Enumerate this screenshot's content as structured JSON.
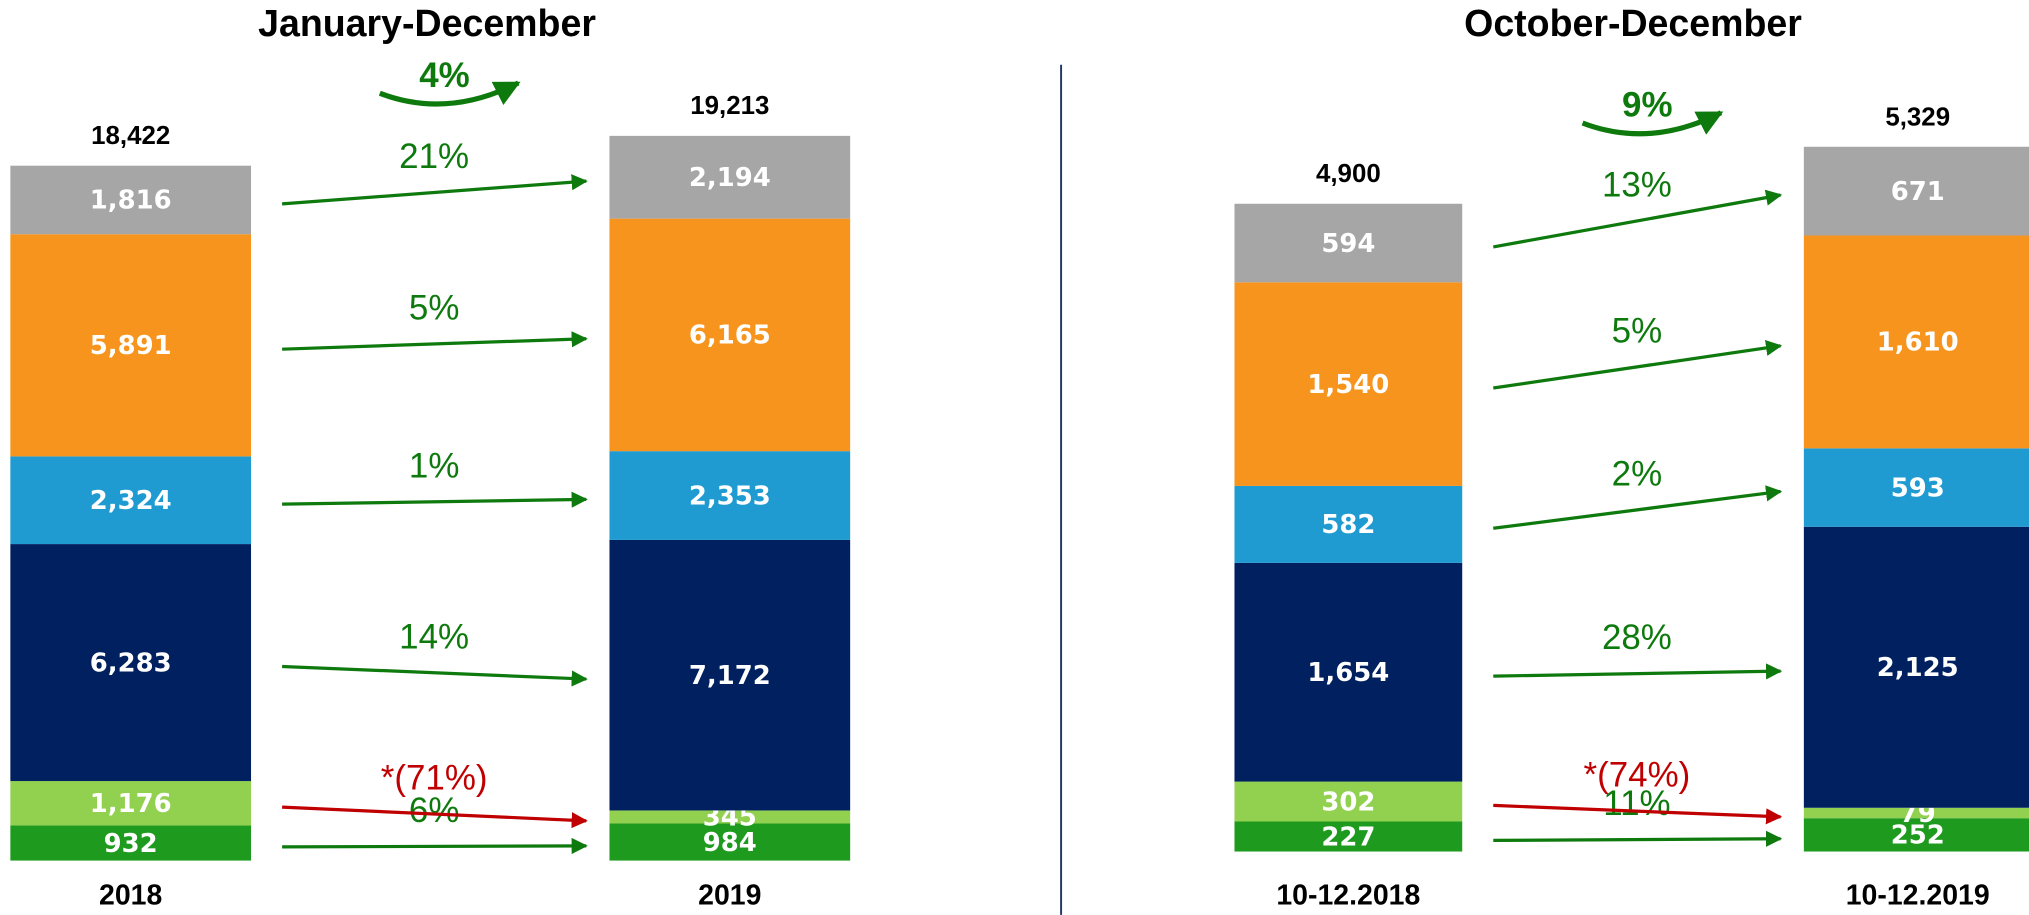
{
  "chart_data": [
    {
      "type": "bar",
      "stacked": true,
      "title": "January-December",
      "categories": [
        "2018",
        "2019"
      ],
      "ylim": [
        0,
        20000
      ],
      "series": [
        {
          "color": "#1e9b1e",
          "values": [
            932,
            984
          ],
          "value_labels": [
            "932",
            "984"
          ]
        },
        {
          "color": "#92d050",
          "values": [
            1176,
            345
          ],
          "value_labels": [
            "1,176",
            "345"
          ]
        },
        {
          "color": "#002060",
          "values": [
            6283,
            7172
          ],
          "value_labels": [
            "6,283",
            "7,172"
          ]
        },
        {
          "color": "#1f9bd1",
          "values": [
            2324,
            2353
          ],
          "value_labels": [
            "2,324",
            "2,353"
          ]
        },
        {
          "color": "#f7941d",
          "values": [
            5891,
            6165
          ],
          "value_labels": [
            "5,891",
            "6,165"
          ]
        },
        {
          "color": "#a6a6a6",
          "values": [
            1816,
            2194
          ],
          "value_labels": [
            "1,816",
            "2,194"
          ]
        }
      ],
      "totals": {
        "values": [
          18422,
          19213
        ],
        "value_labels": [
          "18,422",
          "19,213"
        ]
      },
      "changes": {
        "values": [
          6,
          -71,
          14,
          1,
          5,
          21
        ],
        "value_labels": [
          "6%",
          "*(71%)",
          "14%",
          "1%",
          "5%",
          "21%"
        ]
      },
      "total_change": {
        "value": 4,
        "label": "4%"
      }
    },
    {
      "type": "bar",
      "stacked": true,
      "title": "October-December",
      "categories": [
        "10-12.2018",
        "10-12.2019"
      ],
      "ylim": [
        0,
        5500
      ],
      "series": [
        {
          "color": "#1e9b1e",
          "values": [
            227,
            252
          ],
          "value_labels": [
            "227",
            "252"
          ]
        },
        {
          "color": "#92d050",
          "values": [
            302,
            79
          ],
          "value_labels": [
            "302",
            "79"
          ]
        },
        {
          "color": "#002060",
          "values": [
            1654,
            2125
          ],
          "value_labels": [
            "1,654",
            "2,125"
          ]
        },
        {
          "color": "#1f9bd1",
          "values": [
            582,
            593
          ],
          "value_labels": [
            "582",
            "593"
          ]
        },
        {
          "color": "#f7941d",
          "values": [
            1540,
            1610
          ],
          "value_labels": [
            "1,540",
            "1,610"
          ]
        },
        {
          "color": "#a6a6a6",
          "values": [
            594,
            671
          ],
          "value_labels": [
            "594",
            "671"
          ]
        }
      ],
      "totals": {
        "values": [
          4900,
          5329
        ],
        "value_labels": [
          "4,900",
          "5,329"
        ]
      },
      "changes": {
        "values": [
          11,
          -74,
          28,
          2,
          5,
          13
        ],
        "value_labels": [
          "11%",
          "*(74%)",
          "28%",
          "2%",
          "5%",
          "13%"
        ]
      },
      "total_change": {
        "value": 9,
        "label": "9%"
      }
    }
  ]
}
